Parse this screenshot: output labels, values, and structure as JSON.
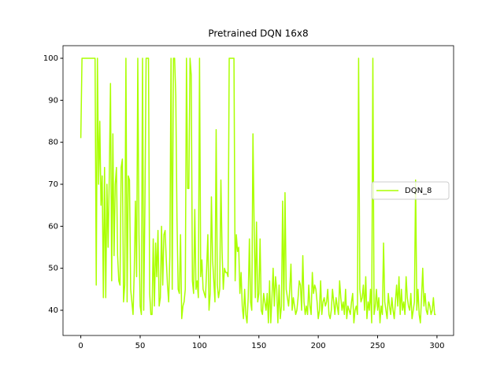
{
  "chart_data": {
    "type": "line",
    "title": "Pretrained DQN 16x8",
    "x": [
      0,
      1,
      2,
      3,
      4,
      5,
      6,
      7,
      8,
      9,
      10,
      11,
      12,
      13,
      14,
      15,
      16,
      17,
      18,
      19,
      20,
      21,
      22,
      23,
      24,
      25,
      26,
      27,
      28,
      29,
      30,
      31,
      32,
      33,
      34,
      35,
      36,
      37,
      38,
      39,
      40,
      41,
      42,
      43,
      44,
      45,
      46,
      47,
      48,
      49,
      50,
      51,
      52,
      53,
      54,
      55,
      56,
      57,
      58,
      59,
      60,
      61,
      62,
      63,
      64,
      65,
      66,
      67,
      68,
      69,
      70,
      71,
      72,
      73,
      74,
      75,
      76,
      77,
      78,
      79,
      80,
      81,
      82,
      83,
      84,
      85,
      86,
      87,
      88,
      89,
      90,
      91,
      92,
      93,
      94,
      95,
      96,
      97,
      98,
      99,
      100,
      101,
      102,
      103,
      104,
      105,
      106,
      107,
      108,
      109,
      110,
      111,
      112,
      113,
      114,
      115,
      116,
      117,
      118,
      119,
      120,
      121,
      122,
      123,
      124,
      125,
      126,
      127,
      128,
      129,
      130,
      131,
      132,
      133,
      134,
      135,
      136,
      137,
      138,
      139,
      140,
      141,
      142,
      143,
      144,
      145,
      146,
      147,
      148,
      149,
      150,
      151,
      152,
      153,
      154,
      155,
      156,
      157,
      158,
      159,
      160,
      161,
      162,
      163,
      164,
      165,
      166,
      167,
      168,
      169,
      170,
      171,
      172,
      173,
      174,
      175,
      176,
      177,
      178,
      179,
      180,
      181,
      182,
      183,
      184,
      185,
      186,
      187,
      188,
      189,
      190,
      191,
      192,
      193,
      194,
      195,
      196,
      197,
      198,
      199,
      200,
      201,
      202,
      203,
      204,
      205,
      206,
      207,
      208,
      209,
      210,
      211,
      212,
      213,
      214,
      215,
      216,
      217,
      218,
      219,
      220,
      221,
      222,
      223,
      224,
      225,
      226,
      227,
      228,
      229,
      230,
      231,
      232,
      233,
      234,
      235,
      236,
      237,
      238,
      239,
      240,
      241,
      242,
      243,
      244,
      245,
      246,
      247,
      248,
      249,
      250,
      251,
      252,
      253,
      254,
      255,
      256,
      257,
      258,
      259,
      260,
      261,
      262,
      263,
      264,
      265,
      266,
      267,
      268,
      269,
      270,
      271,
      272,
      273,
      274,
      275,
      276,
      277,
      278,
      279,
      280,
      281,
      282,
      283,
      284,
      285,
      286,
      287,
      288,
      289,
      290,
      291,
      292,
      293,
      294,
      295,
      296,
      297,
      298,
      299
    ],
    "series": [
      {
        "name": "DQN_8",
        "color": "#aaff00",
        "values": [
          81,
          100,
          100,
          100,
          100,
          100,
          100,
          100,
          100,
          100,
          100,
          100,
          100,
          46,
          100,
          70,
          85,
          65,
          72,
          43,
          74,
          43,
          70,
          55,
          72,
          94,
          47,
          82,
          53,
          70,
          74,
          53,
          47,
          46,
          74,
          76,
          42,
          46,
          100,
          42,
          72,
          71,
          45,
          42,
          39,
          49,
          66,
          48,
          100,
          58,
          41,
          39,
          100,
          40,
          65,
          100,
          100,
          100,
          44,
          39,
          39,
          57,
          41,
          56,
          48,
          59,
          41,
          43,
          60,
          46,
          58,
          59,
          52,
          46,
          42,
          53,
          100,
          45,
          100,
          100,
          91,
          62,
          45,
          44,
          58,
          38,
          41,
          42,
          45,
          100,
          69,
          69,
          100,
          96,
          47,
          44,
          64,
          45,
          47,
          43,
          100,
          48,
          52,
          45,
          44,
          43,
          50,
          58,
          40,
          44,
          67,
          52,
          47,
          42,
          83,
          46,
          43,
          45,
          71,
          54,
          45,
          50,
          49,
          49,
          48,
          100,
          100,
          100,
          100,
          100,
          47,
          58,
          54,
          55,
          44,
          49,
          41,
          38,
          45,
          39,
          37,
          43,
          57,
          42,
          40,
          82,
          60,
          43,
          61,
          42,
          44,
          57,
          40,
          39,
          44,
          42,
          40,
          44,
          37,
          47,
          37,
          43,
          50,
          41,
          48,
          45,
          37,
          46,
          38,
          41,
          66,
          40,
          68,
          45,
          43,
          41,
          45,
          51,
          40,
          43,
          41,
          39,
          40,
          43,
          47,
          46,
          40,
          53,
          42,
          39,
          41,
          39,
          46,
          41,
          39,
          49,
          44,
          46,
          45,
          42,
          38,
          40,
          47,
          39,
          42,
          43,
          41,
          42,
          45,
          39,
          38,
          40,
          45,
          42,
          39,
          43,
          41,
          39,
          47,
          43,
          40,
          42,
          39,
          45,
          38,
          41,
          40,
          39,
          42,
          44,
          37,
          40,
          41,
          39,
          100,
          45,
          42,
          43,
          46,
          40,
          48,
          38,
          42,
          40,
          45,
          37,
          100,
          39,
          41,
          45,
          40,
          43,
          37,
          41,
          39,
          56,
          42,
          40,
          38,
          44,
          41,
          39,
          43,
          40,
          38,
          42,
          46,
          41,
          48,
          39,
          45,
          40,
          42,
          39,
          48,
          43,
          41,
          40,
          44,
          38,
          40,
          42,
          71,
          40,
          45,
          39,
          37,
          43,
          50,
          41,
          44,
          40,
          39,
          42,
          41,
          39,
          40,
          43,
          39,
          39
        ]
      }
    ],
    "xlim": [
      -15,
      314
    ],
    "ylim": [
      34,
      103
    ],
    "xticks": [
      0,
      50,
      100,
      150,
      200,
      250,
      300
    ],
    "yticks": [
      40,
      50,
      60,
      70,
      80,
      90,
      100
    ],
    "legend": "center right"
  }
}
